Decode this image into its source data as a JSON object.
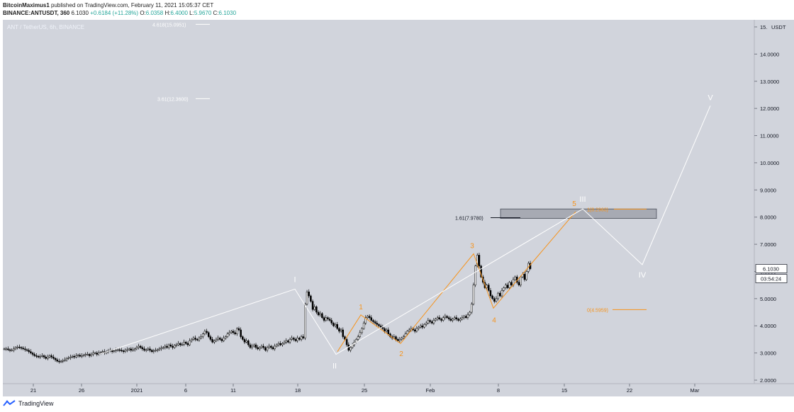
{
  "header": {
    "author": "BitcoinMaximus1",
    "published_text": "published on TradingView.com, February 11, 2021 15:05:37 CET",
    "symbol": "BINANCE:ANTUSDT, 360",
    "last": "6.1030",
    "change": "+0.6184 (+11.28%)",
    "o_label": "O:",
    "o_value": "6.0358",
    "h_label": "H:",
    "h_value": "6.4000",
    "l_label": "L:",
    "l_value": "5.9670",
    "c_label": "C:",
    "c_value": "6.1030"
  },
  "footer": {
    "brand": "TradingView"
  },
  "colors": {
    "background": "#d1d4dc",
    "candle": "#000000",
    "white_wave": "#ffffff",
    "orange_wave": "#f7931a",
    "box_fill": "#9598a1"
  },
  "chart_data": {
    "type": "candlestick",
    "title": "ANT / TetherUS, 6h, BINANCE",
    "y_axis": {
      "unit_label": "USDT",
      "ticks": [
        "15.0000",
        "14.0000",
        "13.0000",
        "12.0000",
        "11.0000",
        "10.0000",
        "9.0000",
        "8.0000",
        "7.0000",
        "6.0000",
        "5.0000",
        "4.0000",
        "3.0000",
        "2.0000"
      ],
      "range": [
        1.8,
        15.2
      ]
    },
    "x_axis": {
      "ticks": [
        "21",
        "26",
        "2021",
        "6",
        "11",
        "18",
        "25",
        "Feb",
        "8",
        "15",
        "22",
        "Mar"
      ]
    },
    "price_label": "6.1030",
    "countdown_label": "03:54:24",
    "fib_levels": [
      {
        "label": "4.618(15.0951)",
        "value": 15.0951
      },
      {
        "label": "3.61(12.3600)",
        "value": 12.36
      },
      {
        "label": "1.61(7.9780)",
        "value": 7.978
      },
      {
        "label": "1(8.2960)",
        "value": 8.296
      },
      {
        "label": "0(4.5959)",
        "value": 4.5959
      }
    ],
    "resistance_zone": [
      7.95,
      8.3
    ],
    "white_wave": [
      {
        "label": "I",
        "value": 5.35
      },
      {
        "label": "II",
        "value": 2.95
      },
      {
        "label": "III",
        "value": 8.3
      },
      {
        "label": "IV",
        "value": 6.25
      },
      {
        "label": "V",
        "value": 12.1
      }
    ],
    "orange_wave": [
      {
        "label": "1",
        "value": 4.4
      },
      {
        "label": "2",
        "value": 3.35
      },
      {
        "label": "3",
        "value": 6.65
      },
      {
        "label": "4",
        "value": 4.65
      },
      {
        "label": "5",
        "value": 8.2
      }
    ],
    "close_series": [
      3.15,
      3.15,
      3.12,
      3.1,
      3.1,
      3.15,
      3.2,
      3.22,
      3.2,
      3.18,
      3.15,
      3.12,
      3.1,
      3.05,
      3.0,
      2.95,
      2.9,
      2.88,
      2.85,
      2.88,
      2.9,
      2.85,
      2.8,
      2.85,
      2.9,
      2.85,
      2.8,
      2.75,
      2.7,
      2.68,
      2.7,
      2.72,
      2.75,
      2.8,
      2.82,
      2.85,
      2.88,
      2.85,
      2.9,
      2.92,
      2.88,
      2.9,
      2.92,
      2.95,
      2.95,
      2.9,
      2.95,
      3.0,
      3.0,
      2.95,
      3.0,
      3.02,
      3.05,
      3.0,
      3.05,
      3.08,
      3.1,
      3.05,
      3.08,
      3.1,
      3.12,
      3.1,
      3.08,
      3.05,
      3.1,
      3.12,
      3.15,
      3.1,
      3.12,
      3.15,
      3.2,
      3.25,
      3.2,
      3.15,
      3.1,
      3.12,
      3.15,
      3.1,
      3.05,
      3.08,
      3.1,
      3.12,
      3.15,
      3.18,
      3.2,
      3.25,
      3.2,
      3.3,
      3.25,
      3.2,
      3.28,
      3.3,
      3.35,
      3.3,
      3.32,
      3.4,
      3.35,
      3.3,
      3.45,
      3.5,
      3.55,
      3.5,
      3.48,
      3.55,
      3.6,
      3.7,
      3.8,
      3.75,
      3.6,
      3.5,
      3.4,
      3.45,
      3.5,
      3.55,
      3.5,
      3.45,
      3.55,
      3.6,
      3.7,
      3.75,
      3.8,
      3.75,
      3.7,
      3.9,
      3.85,
      3.6,
      3.5,
      3.4,
      3.45,
      3.3,
      3.2,
      3.25,
      3.3,
      3.2,
      3.15,
      3.2,
      3.25,
      3.2,
      3.1,
      3.2,
      3.25,
      3.2,
      3.15,
      3.25,
      3.3,
      3.35,
      3.3,
      3.35,
      3.4,
      3.45,
      3.4,
      3.5,
      3.55,
      3.5,
      3.45,
      3.55,
      3.5,
      3.6,
      3.55,
      4.8,
      5.25,
      5.1,
      4.9,
      4.6,
      4.7,
      4.5,
      4.4,
      4.45,
      4.3,
      4.2,
      4.3,
      4.25,
      4.2,
      4.1,
      4.0,
      4.05,
      3.9,
      3.8,
      3.85,
      3.6,
      3.5,
      3.3,
      3.1,
      3.2,
      3.3,
      3.4,
      3.5,
      3.6,
      3.75,
      3.9,
      4.1,
      4.3,
      4.35,
      4.3,
      4.2,
      4.15,
      4.1,
      4.05,
      4.0,
      3.95,
      3.9,
      3.8,
      3.85,
      3.7,
      3.6,
      3.55,
      3.6,
      3.5,
      3.45,
      3.5,
      3.55,
      3.6,
      3.7,
      3.8,
      3.85,
      3.9,
      3.85,
      3.8,
      3.9,
      3.95,
      4.0,
      3.95,
      4.05,
      4.1,
      4.2,
      4.15,
      4.1,
      4.2,
      4.25,
      4.3,
      4.25,
      4.2,
      4.3,
      4.35,
      4.3,
      4.25,
      4.2,
      4.25,
      4.3,
      4.25,
      4.2,
      4.25,
      4.3,
      4.35,
      4.3,
      4.4,
      4.5,
      4.8,
      5.5,
      6.2,
      6.6,
      6.2,
      5.8,
      5.6,
      5.4,
      5.5,
      5.3,
      5.1,
      5.0,
      4.9,
      5.0,
      5.2,
      5.1,
      5.3,
      5.4,
      5.5,
      5.4,
      5.6,
      5.5,
      5.7,
      5.8,
      5.6,
      5.5,
      5.8,
      5.9,
      5.7,
      6.0,
      6.3,
      6.1
    ]
  }
}
